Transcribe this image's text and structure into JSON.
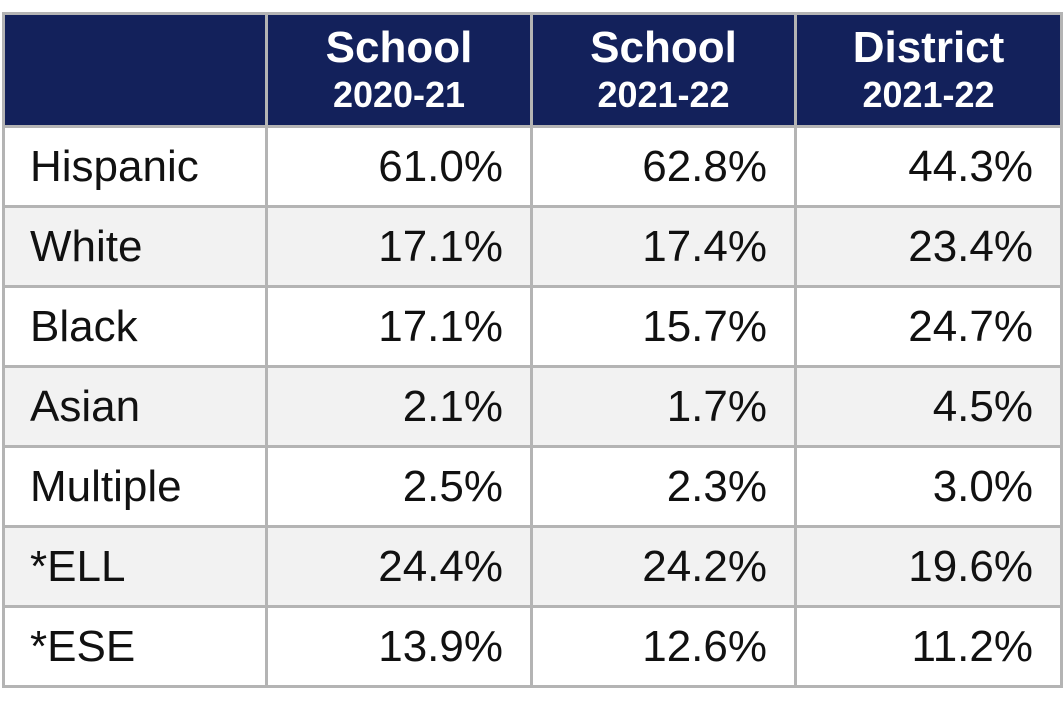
{
  "table": {
    "columns": [
      {
        "title": "School",
        "period": "2020-21"
      },
      {
        "title": "School",
        "period": "2021-22"
      },
      {
        "title": "District",
        "period": "2021-22"
      }
    ],
    "rows": [
      [
        "Hispanic",
        "61.0%",
        "62.8%",
        "44.3%"
      ],
      [
        "White",
        "17.1%",
        "17.4%",
        "23.4%"
      ],
      [
        "Black",
        "17.1%",
        "15.7%",
        "24.7%"
      ],
      [
        "Asian",
        "2.1%",
        "1.7%",
        "4.5%"
      ],
      [
        "Multiple",
        "2.5%",
        "2.3%",
        "3.0%"
      ],
      [
        "*ELL",
        "24.4%",
        "24.2%",
        "19.6%"
      ],
      [
        "*ESE",
        "13.9%",
        "12.6%",
        "11.2%"
      ]
    ]
  }
}
